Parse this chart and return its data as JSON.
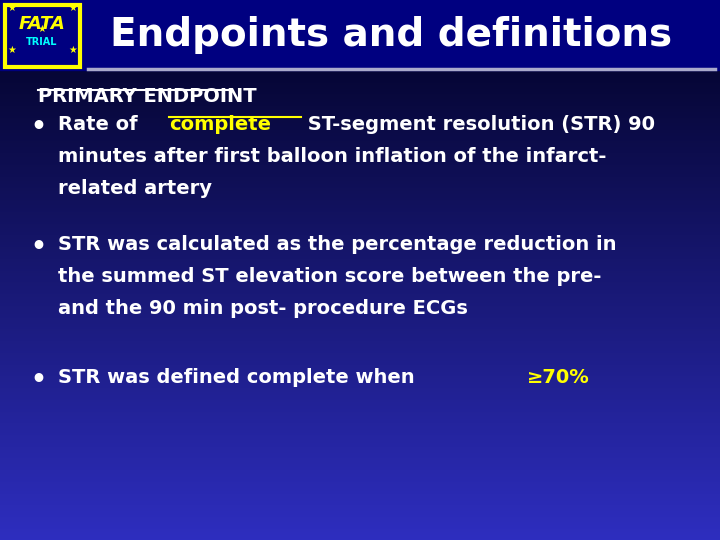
{
  "title": "Endpoints and definitions",
  "title_color": "#ffffff",
  "title_fontsize": 28,
  "bg_color_top": "#000033",
  "bg_color_bottom": "#3333cc",
  "header_bg": "#000080",
  "separator_color": "#aaaacc",
  "section_label": "PRIMARY ENDPOINT",
  "section_label_color": "#ffffff",
  "bullets": [
    {
      "parts": [
        {
          "text": "Rate of ",
          "color": "#ffffff",
          "bold": true,
          "underline": false
        },
        {
          "text": "complete",
          "color": "#ffff00",
          "bold": true,
          "underline": true
        },
        {
          "text": " ST-segment resolution (STR) 90\nminutes after first balloon inflation of the infarct-\nrelated artery",
          "color": "#ffffff",
          "bold": true,
          "underline": false
        }
      ]
    },
    {
      "parts": [
        {
          "text": "STR was calculated as the percentage reduction in\nthe summed ST elevation score between the pre-\nand the 90 min post- procedure ECGs",
          "color": "#ffffff",
          "bold": true,
          "underline": false
        }
      ]
    },
    {
      "parts": [
        {
          "text": "STR was defined complete when ",
          "color": "#ffffff",
          "bold": true,
          "underline": false
        },
        {
          "text": "≥70%",
          "color": "#ffff00",
          "bold": true,
          "underline": false
        }
      ]
    }
  ],
  "logo_box_color": "#000080",
  "logo_border_color": "#ffff00",
  "fata_color": "#ffff00",
  "trial_color": "#00ffff",
  "star_color": "#ffff00"
}
